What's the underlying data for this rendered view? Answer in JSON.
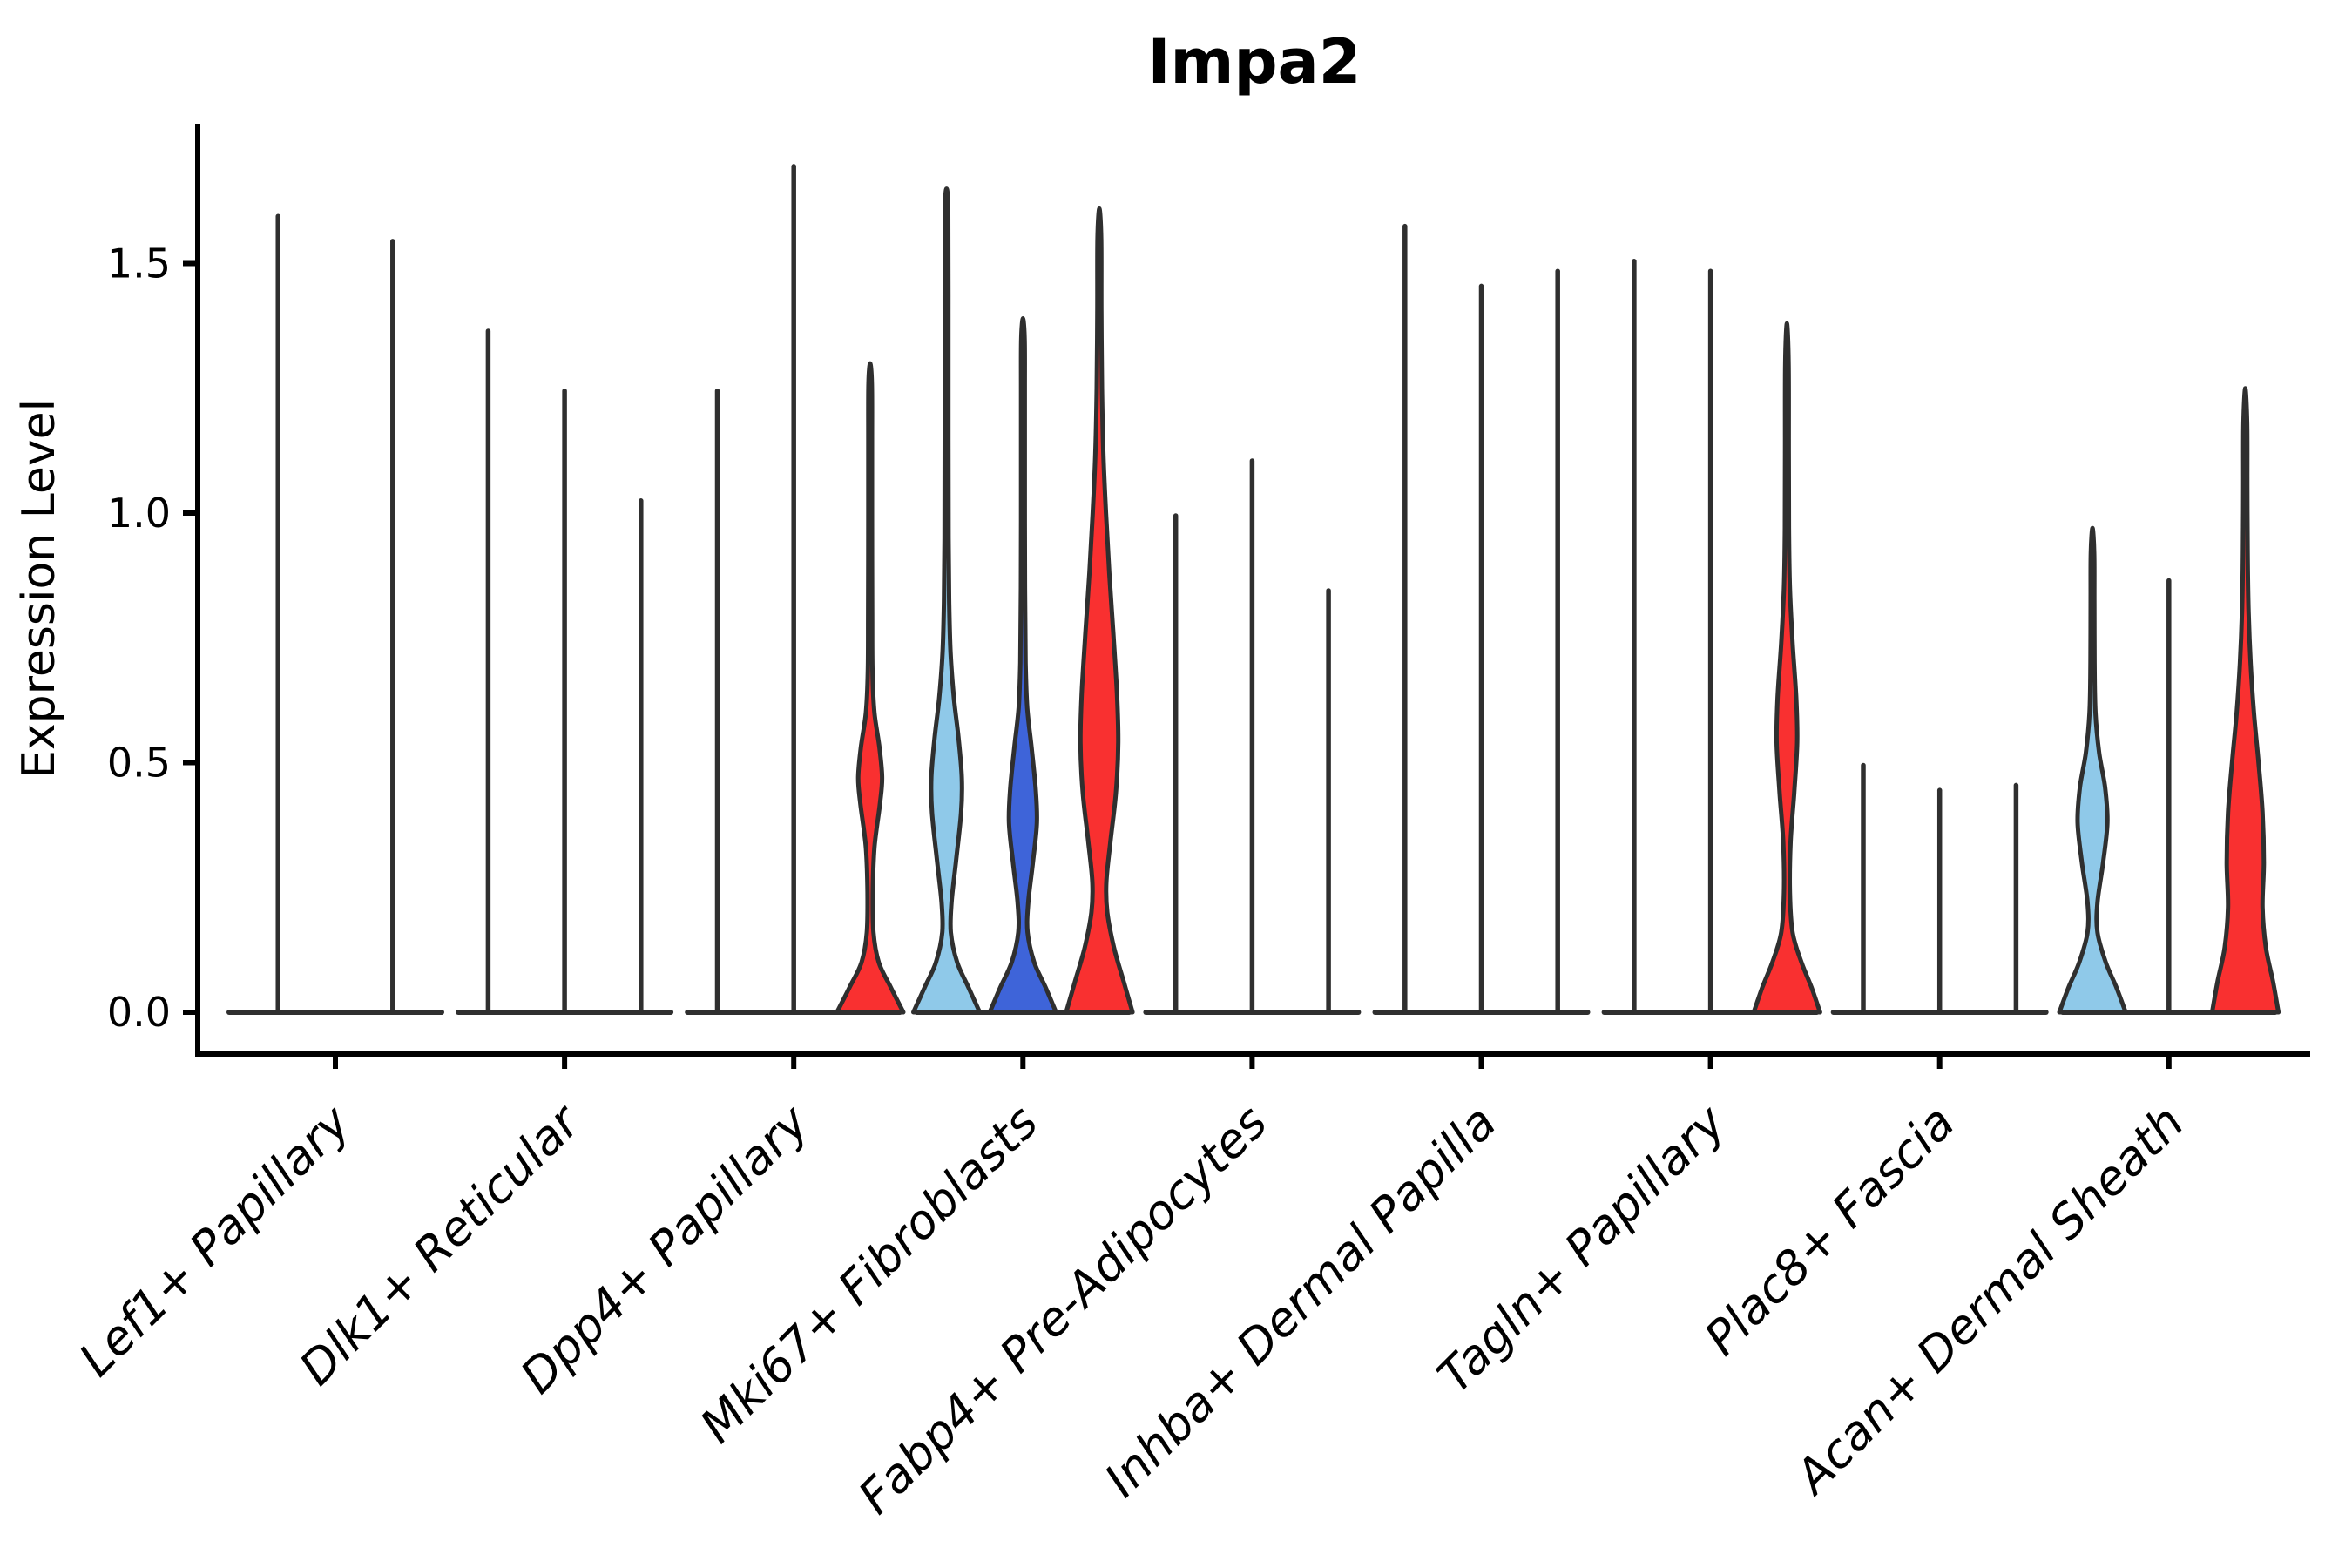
{
  "title": "Impa2",
  "axis": {
    "ylabel": "Expression Level",
    "ytick_labels": [
      "0.0",
      "0.5",
      "1.0",
      "1.5"
    ]
  },
  "colors": {
    "red": "#F93030",
    "light_blue": "#8FC9E9",
    "dark_blue": "#3E64D9",
    "violin_outline": "#2F2F2F",
    "axis_line": "#000000",
    "background": "#FFFFFF"
  },
  "chart_data": {
    "type": "violin",
    "title": "Impa2",
    "xlabel": "",
    "ylabel": "Expression Level",
    "ylim": [
      0,
      1.78
    ],
    "yticks": [
      0,
      0.5,
      1.0,
      1.5
    ],
    "grid": false,
    "legend": "none",
    "categories": [
      "Lef1+ Papillary",
      "Dlk1+ Reticular",
      "Dpp4+ Papillary",
      "Mki67+ Fibroblasts",
      "Fabp4+ Pre-Adipocytes",
      "Inhba+ Dermal Papilla",
      "Tagln+ Papillary",
      "Plac8+ Fascia",
      "Acan+ Dermal Sheath"
    ],
    "groups": [
      {
        "category": "Lef1+ Papillary",
        "violins": [
          {
            "fill": "none",
            "max": 1.6
          },
          {
            "fill": "none",
            "max": 1.55
          }
        ]
      },
      {
        "category": "Dlk1+ Reticular",
        "violins": [
          {
            "fill": "none",
            "max": 1.37
          },
          {
            "fill": "none",
            "max": 1.25
          },
          {
            "fill": "none",
            "max": 1.03
          }
        ]
      },
      {
        "category": "Dpp4+ Papillary",
        "violins": [
          {
            "fill": "none",
            "max": 1.25
          },
          {
            "fill": "none",
            "max": 1.7
          },
          {
            "fill": "red",
            "max": 1.3,
            "profile": [
              [
                0,
                1.0
              ],
              [
                0.05,
                0.62
              ],
              [
                0.1,
                0.26
              ],
              [
                0.16,
                0.1
              ],
              [
                0.24,
                0.08
              ],
              [
                0.33,
                0.13
              ],
              [
                0.42,
                0.3
              ],
              [
                0.47,
                0.36
              ],
              [
                0.53,
                0.28
              ],
              [
                0.6,
                0.13
              ],
              [
                0.68,
                0.07
              ],
              [
                0.8,
                0.06
              ],
              [
                1.0,
                0.055
              ],
              [
                1.15,
                0.055
              ],
              [
                1.26,
                0.05
              ],
              [
                1.3,
                0.0
              ]
            ]
          }
        ]
      },
      {
        "category": "Mki67+ Fibroblasts",
        "violins": [
          {
            "fill": "light_blue",
            "max": 1.65,
            "profile": [
              [
                0,
                1.0
              ],
              [
                0.05,
                0.66
              ],
              [
                0.1,
                0.32
              ],
              [
                0.16,
                0.13
              ],
              [
                0.22,
                0.15
              ],
              [
                0.3,
                0.28
              ],
              [
                0.4,
                0.44
              ],
              [
                0.47,
                0.46
              ],
              [
                0.55,
                0.36
              ],
              [
                0.63,
                0.22
              ],
              [
                0.72,
                0.12
              ],
              [
                0.82,
                0.08
              ],
              [
                0.95,
                0.06
              ],
              [
                1.15,
                0.055
              ],
              [
                1.4,
                0.055
              ],
              [
                1.6,
                0.05
              ],
              [
                1.65,
                0.0
              ]
            ]
          },
          {
            "fill": "dark_blue",
            "max": 1.39,
            "profile": [
              [
                0,
                1.0
              ],
              [
                0.05,
                0.68
              ],
              [
                0.1,
                0.34
              ],
              [
                0.16,
                0.14
              ],
              [
                0.22,
                0.16
              ],
              [
                0.3,
                0.3
              ],
              [
                0.38,
                0.42
              ],
              [
                0.45,
                0.38
              ],
              [
                0.53,
                0.26
              ],
              [
                0.61,
                0.13
              ],
              [
                0.7,
                0.08
              ],
              [
                0.85,
                0.06
              ],
              [
                1.05,
                0.055
              ],
              [
                1.25,
                0.055
              ],
              [
                1.35,
                0.05
              ],
              [
                1.39,
                0.0
              ]
            ]
          },
          {
            "fill": "red",
            "max": 1.61,
            "profile": [
              [
                0,
                1.0
              ],
              [
                0.06,
                0.74
              ],
              [
                0.13,
                0.44
              ],
              [
                0.2,
                0.24
              ],
              [
                0.26,
                0.21
              ],
              [
                0.34,
                0.33
              ],
              [
                0.44,
                0.5
              ],
              [
                0.54,
                0.57
              ],
              [
                0.64,
                0.53
              ],
              [
                0.76,
                0.42
              ],
              [
                0.88,
                0.3
              ],
              [
                1.0,
                0.2
              ],
              [
                1.12,
                0.12
              ],
              [
                1.25,
                0.08
              ],
              [
                1.4,
                0.06
              ],
              [
                1.55,
                0.055
              ],
              [
                1.61,
                0.0
              ]
            ]
          }
        ]
      },
      {
        "category": "Fabp4+ Pre-Adipocytes",
        "violins": [
          {
            "fill": "none",
            "max": 1.0
          },
          {
            "fill": "none",
            "max": 1.11
          },
          {
            "fill": "none",
            "max": 0.85
          }
        ]
      },
      {
        "category": "Inhba+ Dermal Papilla",
        "violins": [
          {
            "fill": "none",
            "max": 1.58
          },
          {
            "fill": "none",
            "max": 1.46
          },
          {
            "fill": "none",
            "max": 1.49
          }
        ]
      },
      {
        "category": "Tagln+ Papillary",
        "violins": [
          {
            "fill": "none",
            "max": 1.51
          },
          {
            "fill": "none",
            "max": 1.49
          },
          {
            "fill": "red",
            "max": 1.38,
            "profile": [
              [
                0,
                1.0
              ],
              [
                0.05,
                0.74
              ],
              [
                0.1,
                0.44
              ],
              [
                0.16,
                0.17
              ],
              [
                0.24,
                0.09
              ],
              [
                0.34,
                0.11
              ],
              [
                0.44,
                0.22
              ],
              [
                0.54,
                0.31
              ],
              [
                0.63,
                0.28
              ],
              [
                0.74,
                0.17
              ],
              [
                0.85,
                0.09
              ],
              [
                0.97,
                0.06
              ],
              [
                1.12,
                0.055
              ],
              [
                1.3,
                0.05
              ],
              [
                1.38,
                0.0
              ]
            ]
          }
        ]
      },
      {
        "category": "Plac8+ Fascia",
        "violins": [
          {
            "fill": "none",
            "max": 0.5
          },
          {
            "fill": "none",
            "max": 0.45
          },
          {
            "fill": "none",
            "max": 0.46
          }
        ]
      },
      {
        "category": "Acan+ Dermal Sheath",
        "violins": [
          {
            "fill": "light_blue",
            "max": 0.97,
            "profile": [
              [
                0,
                1.0
              ],
              [
                0.05,
                0.72
              ],
              [
                0.1,
                0.4
              ],
              [
                0.16,
                0.15
              ],
              [
                0.22,
                0.15
              ],
              [
                0.3,
                0.32
              ],
              [
                0.38,
                0.45
              ],
              [
                0.45,
                0.38
              ],
              [
                0.52,
                0.2
              ],
              [
                0.6,
                0.09
              ],
              [
                0.7,
                0.06
              ],
              [
                0.82,
                0.055
              ],
              [
                0.92,
                0.05
              ],
              [
                0.97,
                0.0
              ]
            ]
          },
          {
            "fill": "none",
            "max": 0.87
          },
          {
            "fill": "red",
            "max": 1.25,
            "profile": [
              [
                0,
                1.0
              ],
              [
                0.06,
                0.84
              ],
              [
                0.13,
                0.62
              ],
              [
                0.21,
                0.52
              ],
              [
                0.3,
                0.56
              ],
              [
                0.4,
                0.52
              ],
              [
                0.5,
                0.4
              ],
              [
                0.6,
                0.26
              ],
              [
                0.7,
                0.16
              ],
              [
                0.8,
                0.1
              ],
              [
                0.92,
                0.07
              ],
              [
                1.05,
                0.06
              ],
              [
                1.18,
                0.055
              ],
              [
                1.25,
                0.0
              ]
            ]
          }
        ]
      }
    ]
  }
}
